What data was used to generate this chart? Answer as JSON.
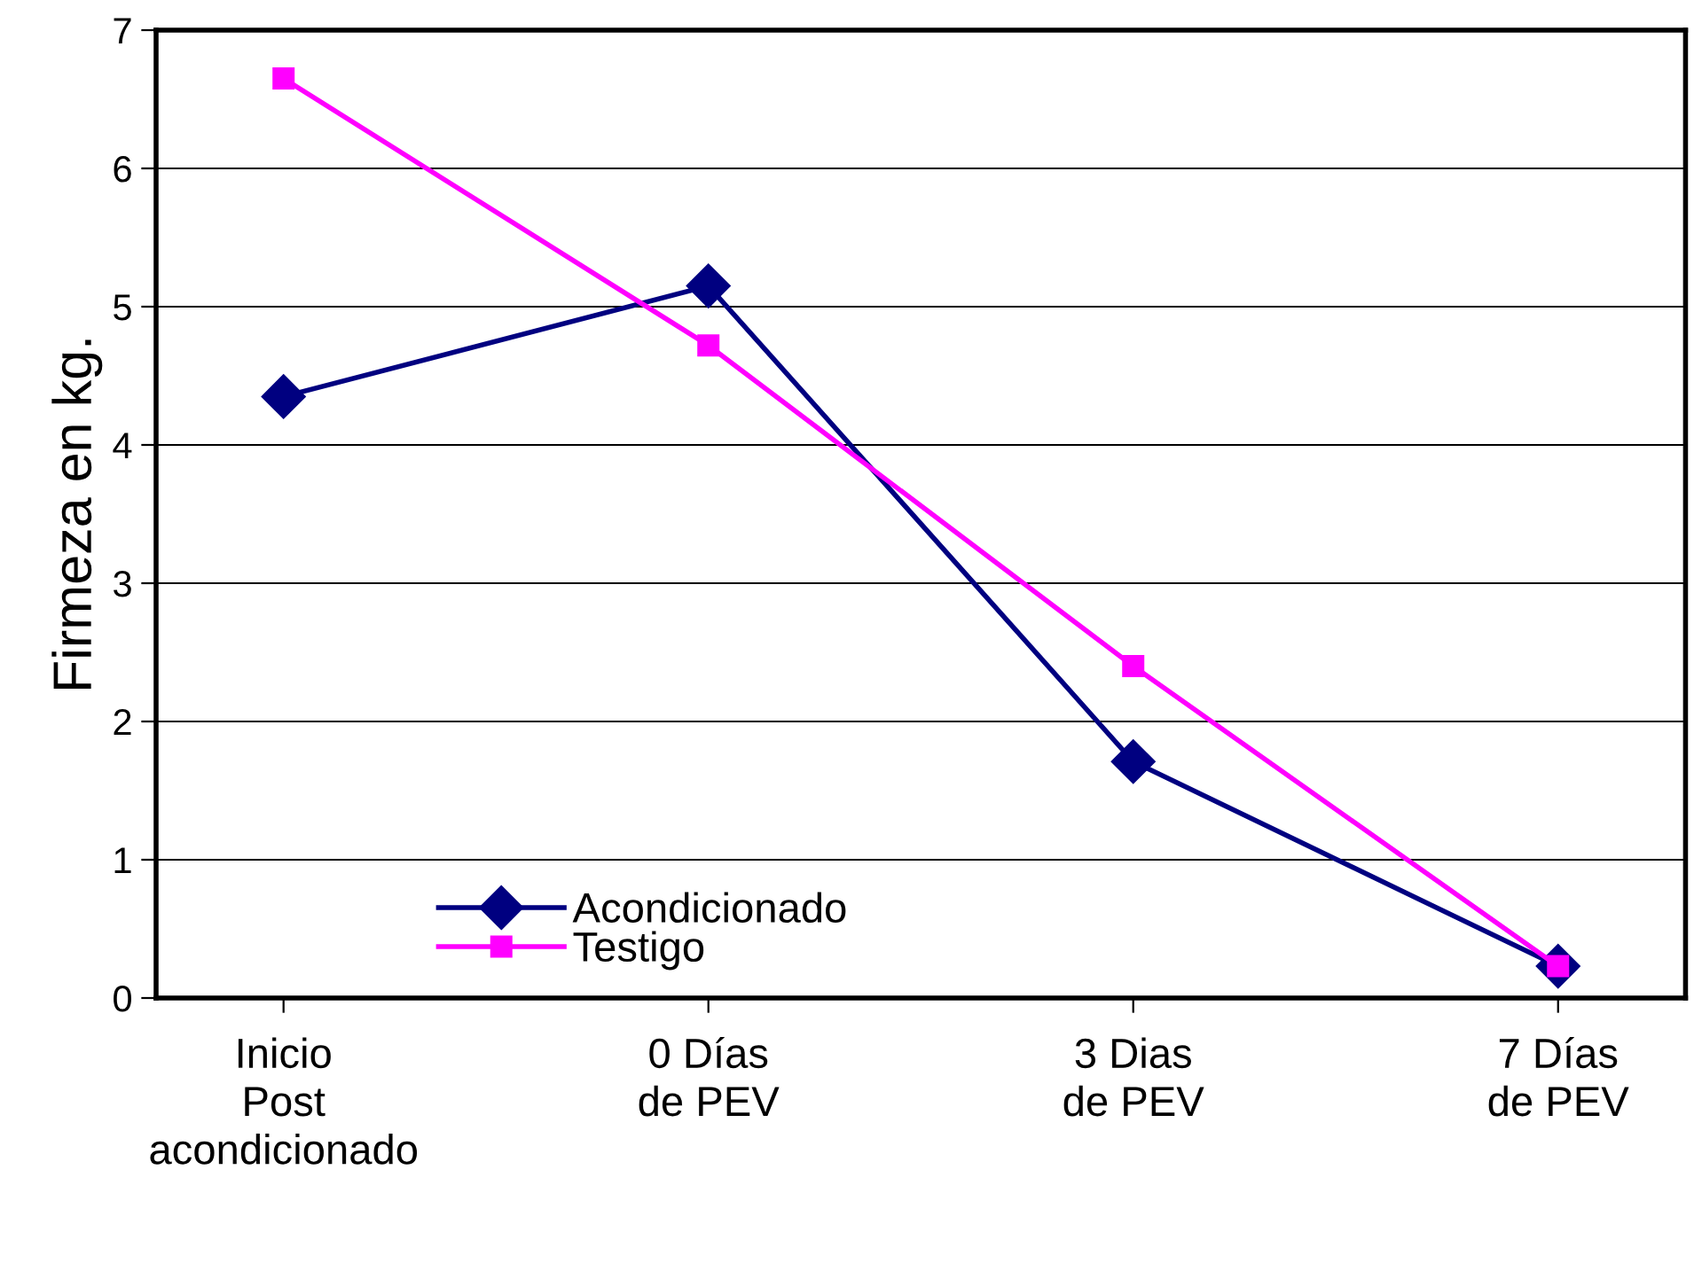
{
  "chart_data": {
    "type": "line",
    "ylabel": "Firmeza en kg.",
    "categories": [
      "Inicio\nPost\nacondicionado",
      "0 Días\nde PEV",
      "3 Dias\nde PEV",
      "7 Días\nde PEV"
    ],
    "series": [
      {
        "name": "Acondicionado",
        "color": "#000080",
        "values": [
          4.35,
          5.15,
          1.71,
          0.23
        ],
        "marker": "diamond"
      },
      {
        "name": "Testigo",
        "color": "#ff00ff",
        "values": [
          6.65,
          4.72,
          2.4,
          0.23
        ],
        "marker": "square"
      }
    ],
    "ylim": [
      0,
      7
    ],
    "yticks": [
      0,
      1,
      2,
      3,
      4,
      5,
      6,
      7
    ],
    "grid": "y",
    "legend": "bottom left",
    "line_style": "solid"
  }
}
